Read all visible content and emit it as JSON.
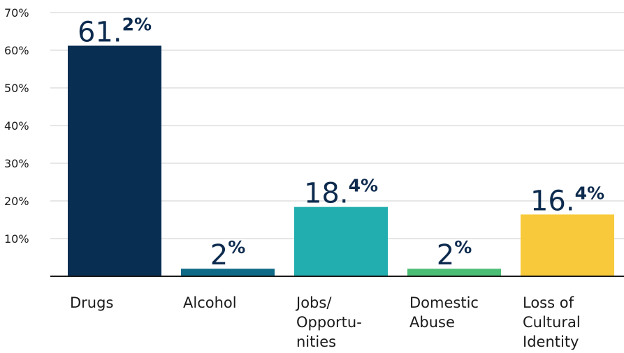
{
  "chart_data": {
    "type": "bar",
    "categories": [
      "Drugs",
      "Alcohol",
      "Jobs/ Opportu- nities",
      "Domestic Abuse",
      "Loss of Cultural Identity"
    ],
    "category_lines": [
      [
        "Drugs"
      ],
      [
        "Alcohol"
      ],
      [
        "Jobs/",
        "Opportu-",
        "nities"
      ],
      [
        "Domestic",
        "Abuse"
      ],
      [
        "Loss of",
        "Cultural",
        "Identity"
      ]
    ],
    "values": [
      61.2,
      2,
      18.4,
      2,
      16.4
    ],
    "value_labels": [
      {
        "main": "61.",
        "sup": "2%"
      },
      {
        "main": "2",
        "sup": "%"
      },
      {
        "main": "18.",
        "sup": "4%"
      },
      {
        "main": "2",
        "sup": "%"
      },
      {
        "main": "16.",
        "sup": "4%"
      }
    ],
    "colors": [
      "#082e52",
      "#0e6a86",
      "#22aeae",
      "#4cbd74",
      "#f8c93a"
    ],
    "yticks": [
      "10%",
      "20%",
      "30%",
      "40%",
      "50%",
      "60%",
      "70%"
    ],
    "ytick_values": [
      10,
      20,
      30,
      40,
      50,
      60,
      70
    ],
    "ylim": [
      0,
      70
    ],
    "grid": true,
    "title": "",
    "xlabel": "",
    "ylabel": ""
  }
}
